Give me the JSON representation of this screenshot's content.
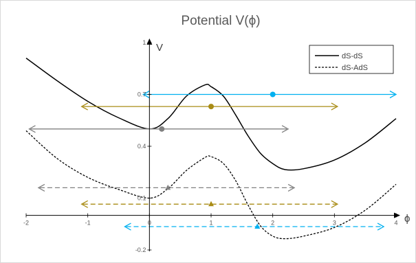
{
  "chart_data": {
    "type": "line",
    "title": "Potential V(ϕ)",
    "xlabel": "ϕ",
    "ylabel": "V",
    "xlim": [
      -2,
      4
    ],
    "ylim": [
      -0.2,
      1
    ],
    "x_ticks": [
      "-2",
      "-1",
      "0",
      "1",
      "2",
      "3",
      "4"
    ],
    "y_ticks": [
      "-0.2",
      "0.1",
      "0.4",
      "0.7",
      "1"
    ],
    "grid": false,
    "legend_position": "top-right",
    "series": [
      {
        "name": "dS-dS",
        "style": "solid",
        "color": "#000000",
        "x": [
          -2,
          -1.5,
          -1,
          -0.5,
          0,
          0.3,
          0.6,
          0.9,
          1.0,
          1.2,
          1.4,
          1.6,
          1.8,
          2.0,
          2.2,
          2.5,
          3.0,
          3.5,
          4.0
        ],
        "y": [
          0.91,
          0.78,
          0.66,
          0.565,
          0.5,
          0.56,
          0.69,
          0.755,
          0.745,
          0.69,
          0.58,
          0.46,
          0.36,
          0.3,
          0.265,
          0.27,
          0.32,
          0.42,
          0.56
        ]
      },
      {
        "name": "dS-AdS",
        "style": "dashed",
        "color": "#000000",
        "x": [
          -2,
          -1.5,
          -1,
          -0.5,
          0,
          0.3,
          0.6,
          0.9,
          1.0,
          1.2,
          1.4,
          1.6,
          1.8,
          2.0,
          2.2,
          2.5,
          3.0,
          3.5,
          4.0
        ],
        "y": [
          0.49,
          0.33,
          0.22,
          0.15,
          0.1,
          0.155,
          0.26,
          0.335,
          0.34,
          0.3,
          0.2,
          0.06,
          -0.06,
          -0.12,
          -0.135,
          -0.12,
          -0.07,
          0.03,
          0.18
        ]
      }
    ],
    "tunneling_lines": [
      {
        "color": "#00b0f0",
        "style": "solid",
        "y": 0.7,
        "x_start": -0.1,
        "x_end": 4,
        "left_arrow": true,
        "right_arrow": true,
        "marker": "circle",
        "marker_x": 2.0
      },
      {
        "color": "#a98c15",
        "style": "solid",
        "y": 0.63,
        "x_start": -1.1,
        "x_end": 3.05,
        "left_arrow": true,
        "right_arrow": true,
        "marker": "circle",
        "marker_x": 1.0
      },
      {
        "color": "#808080",
        "style": "solid",
        "y": 0.5,
        "x_start": -1.95,
        "x_end": 2.25,
        "left_arrow": true,
        "right_arrow": true,
        "marker": "circle",
        "marker_x": 0.2
      },
      {
        "color": "#808080",
        "style": "dashed",
        "y": 0.16,
        "x_start": -1.8,
        "x_end": 2.35,
        "left_arrow": true,
        "right_arrow": true,
        "marker": "triangle",
        "marker_x": 0.3
      },
      {
        "color": "#a98c15",
        "style": "dashed",
        "y": 0.065,
        "x_start": -1.1,
        "x_end": 3.05,
        "left_arrow": true,
        "right_arrow": true,
        "marker": "triangle",
        "marker_x": 1.0
      },
      {
        "color": "#00b0f0",
        "style": "dashed",
        "y": -0.065,
        "x_start": -0.4,
        "x_end": 3.8,
        "left_arrow": true,
        "right_arrow": true,
        "marker": "triangle",
        "marker_x": 1.75
      }
    ]
  }
}
